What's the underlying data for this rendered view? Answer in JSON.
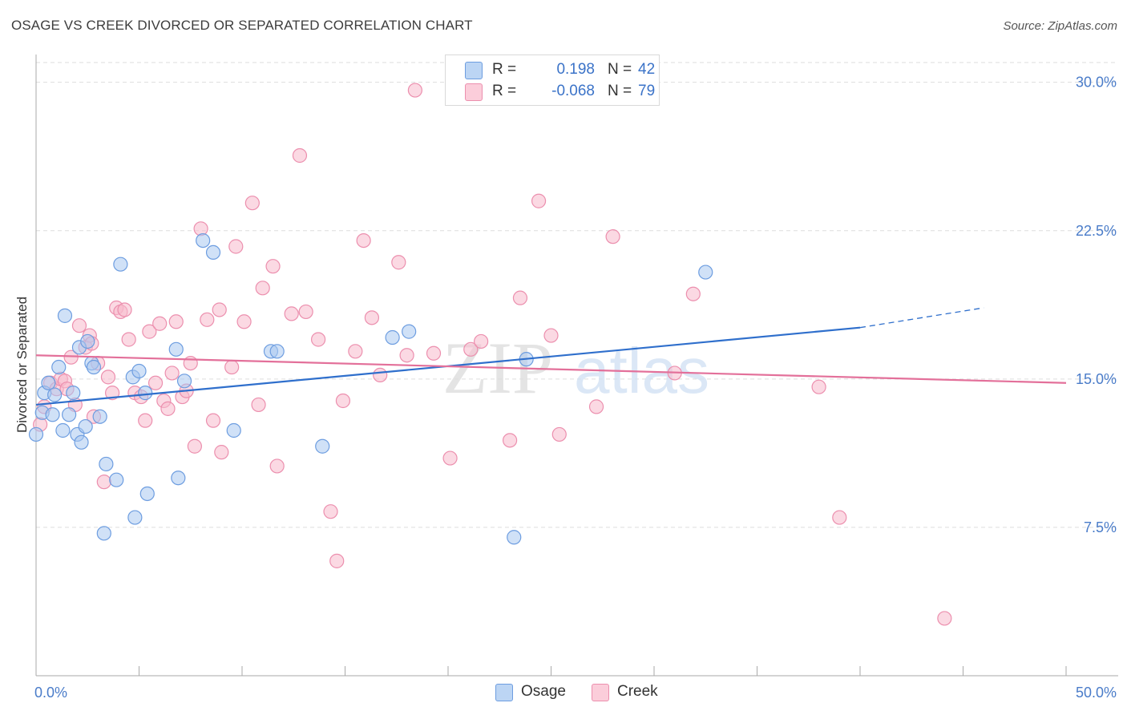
{
  "header": {
    "title": "OSAGE VS CREEK DIVORCED OR SEPARATED CORRELATION CHART",
    "source": "Source: ZipAtlas.com"
  },
  "colors": {
    "osage_fill": "#a9c8f0",
    "osage_stroke": "#6d9de0",
    "osage_line": "#2f6fcc",
    "creek_fill": "#f7b9cc",
    "creek_stroke": "#ec8fae",
    "creek_line": "#e3709a",
    "grid": "#dddddd",
    "axis_label": "#4a7cc9"
  },
  "legend": {
    "rows": [
      {
        "r_label": "R =",
        "r_value": "0.198",
        "n_label": "N =",
        "n_value": "42"
      },
      {
        "r_label": "R =",
        "r_value": "-0.068",
        "n_label": "N =",
        "n_value": "79"
      }
    ]
  },
  "bottom_legend": {
    "osage": "Osage",
    "creek": "Creek"
  },
  "watermark": {
    "zip": "ZIP",
    "atlas": "atlas"
  },
  "chart_data": {
    "type": "scatter",
    "title": "OSAGE VS CREEK DIVORCED OR SEPARATED CORRELATION CHART",
    "xlabel": "",
    "ylabel": "Divorced or Separated",
    "xlim": [
      0,
      50
    ],
    "ylim": [
      0,
      31
    ],
    "x_tick_labels": {
      "min": "0.0%",
      "max": "50.0%"
    },
    "y_ticks": [
      {
        "value": 7.5,
        "label": "7.5%"
      },
      {
        "value": 15.0,
        "label": "15.0%"
      },
      {
        "value": 22.5,
        "label": "22.5%"
      },
      {
        "value": 30.0,
        "label": "30.0%"
      }
    ],
    "grid": true,
    "series": [
      {
        "name": "Osage",
        "r": 0.198,
        "n": 42,
        "trend": {
          "x0": 0,
          "y0": 13.7,
          "x1": 40,
          "y1": 17.6,
          "dash_to_x": 46,
          "dash_to_y": 18.6
        },
        "points": [
          [
            0.0,
            12.2
          ],
          [
            0.3,
            13.3
          ],
          [
            0.4,
            14.3
          ],
          [
            0.6,
            14.8
          ],
          [
            0.8,
            13.2
          ],
          [
            0.9,
            14.2
          ],
          [
            1.1,
            15.6
          ],
          [
            1.3,
            12.4
          ],
          [
            1.4,
            18.2
          ],
          [
            1.6,
            13.2
          ],
          [
            1.8,
            14.3
          ],
          [
            2.0,
            12.2
          ],
          [
            2.1,
            16.6
          ],
          [
            2.2,
            11.8
          ],
          [
            2.4,
            12.6
          ],
          [
            2.5,
            16.9
          ],
          [
            2.7,
            15.8
          ],
          [
            2.8,
            15.6
          ],
          [
            3.1,
            13.1
          ],
          [
            3.4,
            10.7
          ],
          [
            3.9,
            9.9
          ],
          [
            4.1,
            20.8
          ],
          [
            4.7,
            15.1
          ],
          [
            4.8,
            8.0
          ],
          [
            5.0,
            15.4
          ],
          [
            5.3,
            14.3
          ],
          [
            5.4,
            9.2
          ],
          [
            6.8,
            16.5
          ],
          [
            6.9,
            10.0
          ],
          [
            7.2,
            14.9
          ],
          [
            8.1,
            22.0
          ],
          [
            8.6,
            21.4
          ],
          [
            9.6,
            12.4
          ],
          [
            11.4,
            16.4
          ],
          [
            11.7,
            16.4
          ],
          [
            13.9,
            11.6
          ],
          [
            17.3,
            17.1
          ],
          [
            18.1,
            17.4
          ],
          [
            23.2,
            7.0
          ],
          [
            23.8,
            16.0
          ],
          [
            32.5,
            20.4
          ],
          [
            3.3,
            7.2
          ]
        ]
      },
      {
        "name": "Creek",
        "r": -0.068,
        "n": 79,
        "trend": {
          "x0": 0,
          "y0": 16.2,
          "x1": 50,
          "y1": 14.8
        },
        "points": [
          [
            0.2,
            12.7
          ],
          [
            0.4,
            13.6
          ],
          [
            0.7,
            14.8
          ],
          [
            1.0,
            14.5
          ],
          [
            1.2,
            15.0
          ],
          [
            1.4,
            14.9
          ],
          [
            1.5,
            14.5
          ],
          [
            1.7,
            16.1
          ],
          [
            1.9,
            13.7
          ],
          [
            2.1,
            17.7
          ],
          [
            2.4,
            16.6
          ],
          [
            2.6,
            17.2
          ],
          [
            2.8,
            13.1
          ],
          [
            3.0,
            15.8
          ],
          [
            3.3,
            9.8
          ],
          [
            3.5,
            15.1
          ],
          [
            3.7,
            14.3
          ],
          [
            3.9,
            18.6
          ],
          [
            4.1,
            18.4
          ],
          [
            4.3,
            18.5
          ],
          [
            4.5,
            17.0
          ],
          [
            4.8,
            14.3
          ],
          [
            5.1,
            14.1
          ],
          [
            5.3,
            12.9
          ],
          [
            5.5,
            17.4
          ],
          [
            5.8,
            14.8
          ],
          [
            6.0,
            17.8
          ],
          [
            6.2,
            13.9
          ],
          [
            6.4,
            13.5
          ],
          [
            6.6,
            15.3
          ],
          [
            6.8,
            17.9
          ],
          [
            7.1,
            14.1
          ],
          [
            7.3,
            14.4
          ],
          [
            7.5,
            15.8
          ],
          [
            7.7,
            11.6
          ],
          [
            8.0,
            22.6
          ],
          [
            8.3,
            18.0
          ],
          [
            8.6,
            12.9
          ],
          [
            8.9,
            18.5
          ],
          [
            9.0,
            11.3
          ],
          [
            9.5,
            15.6
          ],
          [
            9.7,
            21.7
          ],
          [
            10.1,
            17.9
          ],
          [
            10.5,
            23.9
          ],
          [
            10.8,
            13.7
          ],
          [
            11.0,
            19.6
          ],
          [
            11.5,
            20.7
          ],
          [
            11.7,
            10.6
          ],
          [
            12.4,
            18.3
          ],
          [
            12.8,
            26.3
          ],
          [
            13.1,
            18.4
          ],
          [
            13.7,
            17.0
          ],
          [
            14.3,
            8.3
          ],
          [
            14.6,
            5.8
          ],
          [
            14.9,
            13.9
          ],
          [
            15.5,
            16.4
          ],
          [
            15.9,
            22.0
          ],
          [
            16.3,
            18.1
          ],
          [
            16.7,
            15.2
          ],
          [
            17.6,
            20.9
          ],
          [
            18.0,
            16.2
          ],
          [
            18.4,
            29.6
          ],
          [
            19.3,
            16.3
          ],
          [
            20.1,
            11.0
          ],
          [
            21.1,
            16.5
          ],
          [
            21.6,
            16.9
          ],
          [
            23.0,
            11.9
          ],
          [
            23.5,
            19.1
          ],
          [
            24.4,
            24.0
          ],
          [
            25.0,
            17.2
          ],
          [
            25.4,
            12.2
          ],
          [
            27.2,
            13.6
          ],
          [
            28.0,
            22.2
          ],
          [
            31.0,
            15.3
          ],
          [
            31.9,
            19.3
          ],
          [
            38.0,
            14.6
          ],
          [
            39.0,
            8.0
          ],
          [
            44.1,
            2.9
          ],
          [
            2.7,
            16.8
          ]
        ]
      }
    ]
  }
}
